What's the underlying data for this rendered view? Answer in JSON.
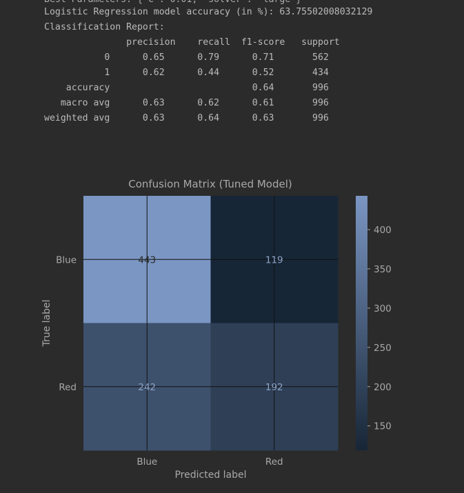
{
  "console": {
    "line_partial": "Best Parameters: {'C': 0.01, 'solver': 'large'}",
    "accuracy_line": "Logistic Regression model accuracy (in %): 63.75502008032129",
    "report_heading": "Classification Report:",
    "header": [
      "precision",
      "recall",
      "f1-score",
      "support"
    ],
    "rows": [
      {
        "label": "0",
        "precision": "0.65",
        "recall": "0.79",
        "f1": "0.71",
        "support": "562"
      },
      {
        "label": "1",
        "precision": "0.62",
        "recall": "0.44",
        "f1": "0.52",
        "support": "434"
      },
      {
        "label": "",
        "precision": "",
        "recall": "",
        "f1": "",
        "support": ""
      },
      {
        "label": "accuracy",
        "precision": "",
        "recall": "",
        "f1": "0.64",
        "support": "996"
      },
      {
        "label": "macro avg",
        "precision": "0.63",
        "recall": "0.62",
        "f1": "0.61",
        "support": "996"
      },
      {
        "label": "weighted avg",
        "precision": "0.63",
        "recall": "0.64",
        "f1": "0.63",
        "support": "996"
      }
    ]
  },
  "chart_data": {
    "type": "heatmap",
    "title": "Confusion Matrix (Tuned Model)",
    "xlabel": "Predicted label",
    "ylabel": "True label",
    "x_categories": [
      "Blue",
      "Red"
    ],
    "y_categories": [
      "Blue",
      "Red"
    ],
    "values": [
      [
        443,
        119
      ],
      [
        242,
        192
      ]
    ],
    "colorbar": {
      "min": 119,
      "max": 443,
      "ticks": [
        150,
        200,
        250,
        300,
        350,
        400
      ]
    },
    "colors": {
      "low": "#172636",
      "high": "#7b96c3",
      "text_on_light": "#2a2a2a",
      "text_on_dark": "#8ea3c6"
    },
    "grid": true
  }
}
